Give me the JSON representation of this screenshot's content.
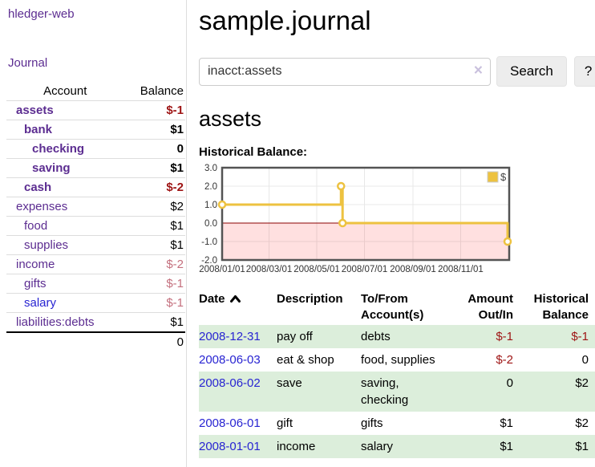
{
  "app": {
    "brand": "hledger-web",
    "journal_link": "Journal"
  },
  "sidebar": {
    "col_account": "Account",
    "col_balance": "Balance",
    "accounts": [
      {
        "name": "assets",
        "balance": "$-1"
      },
      {
        "name": "bank",
        "balance": "$1"
      },
      {
        "name": "checking",
        "balance": "0"
      },
      {
        "name": "saving",
        "balance": "$1"
      },
      {
        "name": "cash",
        "balance": "$-2"
      },
      {
        "name": "expenses",
        "balance": "$2"
      },
      {
        "name": "food",
        "balance": "$1"
      },
      {
        "name": "supplies",
        "balance": "$1"
      },
      {
        "name": "income",
        "balance": "$-2"
      },
      {
        "name": "gifts",
        "balance": "$-1"
      },
      {
        "name": "salary",
        "balance": "$-1"
      },
      {
        "name": "liabilities:debts",
        "balance": "$1"
      }
    ],
    "total": "0"
  },
  "header": {
    "title": "sample.journal"
  },
  "search": {
    "value": "inacct:assets",
    "clear_icon": "×",
    "search_button": "Search",
    "help_button": "?"
  },
  "account_page": {
    "heading": "assets",
    "chart_title": "Historical Balance:"
  },
  "chart_data": {
    "type": "line",
    "step": true,
    "title": "Historical Balance:",
    "series": [
      {
        "name": "$",
        "color": "#edc240",
        "points": [
          [
            "2008-01-01",
            1
          ],
          [
            "2008-06-01",
            2
          ],
          [
            "2008-06-03",
            0
          ],
          [
            "2008-12-31",
            -1
          ]
        ]
      }
    ],
    "x_range": [
      "2008-01-01",
      "2008-12-31"
    ],
    "x_tick_labels": [
      "2008/01/01",
      "2008/03/01",
      "2008/05/01",
      "2008/07/01",
      "2008/09/01",
      "2008/11/01"
    ],
    "y_ticks": [
      "3.0",
      "2.0",
      "1.0",
      "0.0",
      "-1.0",
      "-2.0"
    ],
    "ylim": [
      -2,
      3
    ],
    "grid": true,
    "legend_label": "$",
    "legend_position": "top-right",
    "negative_region_shaded": true
  },
  "register": {
    "headers": {
      "date": "Date",
      "description": "Description",
      "tofrom1": "To/From",
      "tofrom2": "Account(s)",
      "amount1": "Amount",
      "amount2": "Out/In",
      "hist1": "Historical",
      "hist2": "Balance"
    },
    "rows": [
      {
        "date": "2008-12-31",
        "description": "pay off",
        "accounts": "debts",
        "amount": "$-1",
        "balance": "$-1"
      },
      {
        "date": "2008-06-03",
        "description": "eat & shop",
        "accounts": "food, supplies",
        "amount": "$-2",
        "balance": "0"
      },
      {
        "date": "2008-06-02",
        "description": "save",
        "accounts": "saving, checking",
        "amount": "0",
        "balance": "$2"
      },
      {
        "date": "2008-06-01",
        "description": "gift",
        "accounts": "gifts",
        "amount": "$1",
        "balance": "$2"
      },
      {
        "date": "2008-01-01",
        "description": "income",
        "accounts": "salary",
        "amount": "$1",
        "balance": "$1"
      }
    ]
  },
  "colors": {
    "link_purple": "#5c2d91",
    "link_blue": "#2824d2",
    "negative_strong": "#9e1414",
    "negative_soft": "#c4707e",
    "row_green": "#dceedb",
    "chart_line": "#edc240",
    "chart_zero_line": "#8b0000",
    "chart_border": "#545454",
    "chart_grid": "#e8e8e8"
  }
}
